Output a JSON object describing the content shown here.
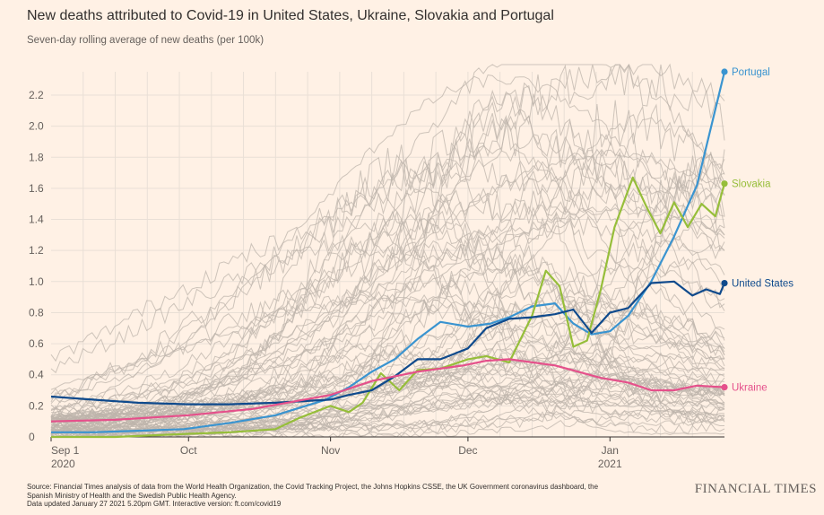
{
  "header": {
    "title": "New deaths attributed to Covid-19 in United States, Ukraine, Slovakia and Portugal",
    "subtitle": "Seven-day rolling average of new deaths (per 100k)"
  },
  "footer": {
    "source_line1": "Source: Financial Times analysis of data from the World Health Organization, the Covid Tracking Project, the Johns Hopkins CSSE, the UK Government coronavirus dashboard, the",
    "source_line2": "Spanish Ministry of Health and the Swedish Public Health Agency.",
    "source_line3": "Data updated January 27 2021 5.20pm GMT. Interactive version: ft.com/covid19",
    "brand": "FINANCIAL TIMES"
  },
  "colors": {
    "background": "#fff1e5",
    "grid": "#e9dfd6",
    "axis": "#33302e",
    "other_countries": "#bdb4ab",
    "United States": "#0f4a8c",
    "Portugal": "#3a94d0",
    "Slovakia": "#96be3a",
    "Ukraine": "#e5508b"
  },
  "chart_data": {
    "type": "line",
    "title": "New deaths attributed to Covid-19 in United States, Ukraine, Slovakia and Portugal",
    "subtitle": "Seven-day rolling average of new deaths (per 100k)",
    "x_ticks": [
      {
        "date": "2020-09-01",
        "label": "Sep 1",
        "sublabel": "2020"
      },
      {
        "date": "2020-10-01",
        "label": "Oct",
        "sublabel": ""
      },
      {
        "date": "2020-11-01",
        "label": "Nov",
        "sublabel": ""
      },
      {
        "date": "2020-12-01",
        "label": "Dec",
        "sublabel": ""
      },
      {
        "date": "2021-01-01",
        "label": "Jan",
        "sublabel": "2021"
      }
    ],
    "xlim": [
      "2020-09-01",
      "2021-01-26"
    ],
    "ylim": [
      0,
      2.35
    ],
    "y_ticks": [
      0,
      0.2,
      0.4,
      0.6,
      0.8,
      1.0,
      1.2,
      1.4,
      1.6,
      1.8,
      2.0,
      2.2
    ],
    "y_tick_labels": [
      "0",
      "0.2",
      "0.4",
      "0.6",
      "0.8",
      "1.0",
      "1.2",
      "1.4",
      "1.6",
      "1.8",
      "2.0",
      "2.2"
    ],
    "grid": true,
    "legend": "inline labels at line ends",
    "highlighted_series": [
      {
        "name": "Portugal",
        "end_label": "Portugal",
        "x": [
          "2020-09-01",
          "2020-09-10",
          "2020-09-20",
          "2020-09-30",
          "2020-10-10",
          "2020-10-20",
          "2020-10-31",
          "2020-11-05",
          "2020-11-10",
          "2020-11-15",
          "2020-11-20",
          "2020-11-25",
          "2020-12-01",
          "2020-12-06",
          "2020-12-10",
          "2020-12-15",
          "2020-12-20",
          "2020-12-24",
          "2020-12-28",
          "2021-01-01",
          "2021-01-05",
          "2021-01-10",
          "2021-01-15",
          "2021-01-20",
          "2021-01-26"
        ],
        "y": [
          0.03,
          0.03,
          0.04,
          0.05,
          0.09,
          0.14,
          0.24,
          0.32,
          0.42,
          0.5,
          0.63,
          0.74,
          0.71,
          0.73,
          0.77,
          0.84,
          0.86,
          0.73,
          0.66,
          0.68,
          0.78,
          1.0,
          1.29,
          1.62,
          2.35
        ]
      },
      {
        "name": "Slovakia",
        "end_label": "Slovakia",
        "x": [
          "2020-09-01",
          "2020-09-15",
          "2020-10-01",
          "2020-10-10",
          "2020-10-20",
          "2020-10-25",
          "2020-11-01",
          "2020-11-05",
          "2020-11-08",
          "2020-11-12",
          "2020-11-16",
          "2020-11-20",
          "2020-11-25",
          "2020-12-01",
          "2020-12-05",
          "2020-12-10",
          "2020-12-15",
          "2020-12-18",
          "2020-12-21",
          "2020-12-24",
          "2020-12-27",
          "2020-12-30",
          "2021-01-02",
          "2021-01-06",
          "2021-01-09",
          "2021-01-12",
          "2021-01-15",
          "2021-01-18",
          "2021-01-21",
          "2021-01-24",
          "2021-01-26"
        ],
        "y": [
          0.0,
          0.0,
          0.02,
          0.03,
          0.05,
          0.12,
          0.2,
          0.16,
          0.22,
          0.41,
          0.3,
          0.43,
          0.44,
          0.5,
          0.52,
          0.48,
          0.78,
          1.07,
          0.97,
          0.58,
          0.62,
          0.95,
          1.35,
          1.67,
          1.48,
          1.31,
          1.51,
          1.35,
          1.5,
          1.42,
          1.63
        ]
      },
      {
        "name": "United States",
        "end_label": "United States",
        "x": [
          "2020-09-01",
          "2020-09-10",
          "2020-09-20",
          "2020-10-01",
          "2020-10-10",
          "2020-10-20",
          "2020-11-01",
          "2020-11-05",
          "2020-11-10",
          "2020-11-15",
          "2020-11-20",
          "2020-11-25",
          "2020-12-01",
          "2020-12-05",
          "2020-12-10",
          "2020-12-15",
          "2020-12-20",
          "2020-12-24",
          "2020-12-28",
          "2021-01-01",
          "2021-01-05",
          "2021-01-10",
          "2021-01-15",
          "2021-01-19",
          "2021-01-22",
          "2021-01-25",
          "2021-01-26"
        ],
        "y": [
          0.26,
          0.24,
          0.22,
          0.21,
          0.21,
          0.22,
          0.24,
          0.27,
          0.3,
          0.39,
          0.5,
          0.5,
          0.57,
          0.7,
          0.76,
          0.77,
          0.79,
          0.82,
          0.67,
          0.8,
          0.83,
          0.99,
          1.0,
          0.91,
          0.95,
          0.92,
          0.99
        ]
      },
      {
        "name": "Ukraine",
        "end_label": "Ukraine",
        "x": [
          "2020-09-01",
          "2020-09-15",
          "2020-10-01",
          "2020-10-15",
          "2020-11-01",
          "2020-11-10",
          "2020-11-20",
          "2020-11-30",
          "2020-12-05",
          "2020-12-10",
          "2020-12-20",
          "2020-12-30",
          "2021-01-05",
          "2021-01-10",
          "2021-01-15",
          "2021-01-20",
          "2021-01-26"
        ],
        "y": [
          0.1,
          0.11,
          0.14,
          0.18,
          0.27,
          0.36,
          0.42,
          0.46,
          0.49,
          0.5,
          0.46,
          0.38,
          0.35,
          0.3,
          0.3,
          0.33,
          0.32
        ]
      }
    ]
  }
}
